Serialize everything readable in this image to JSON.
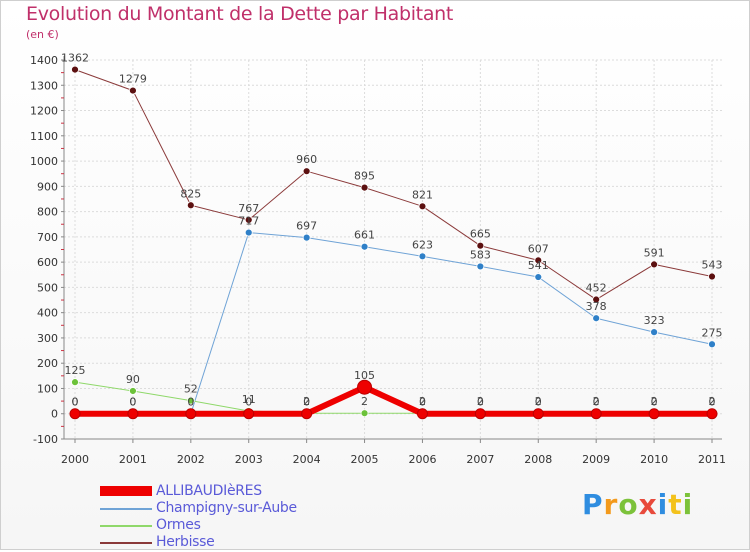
{
  "title": "Evolution du Montant de la Dette par Habitant",
  "subtitle": "(en €)",
  "logo": {
    "letters": [
      "P",
      "r",
      "o",
      "x",
      "i",
      "t",
      "i"
    ],
    "colors": [
      "#2f8de0",
      "#f39a1c",
      "#7cc23a",
      "#e84a3c",
      "#2f8de0",
      "#f3c21c",
      "#7cc23a"
    ]
  },
  "chart_data": {
    "type": "line",
    "title": "Evolution du Montant de la Dette par Habitant",
    "subtitle": "(en €)",
    "xlabel": "",
    "ylabel": "",
    "x": [
      "2000",
      "2001",
      "2002",
      "2003",
      "2004",
      "2005",
      "2006",
      "2007",
      "2008",
      "2009",
      "2010",
      "2011"
    ],
    "ylim": [
      -100,
      1400
    ],
    "yticks": [
      "-100",
      "0",
      "100",
      "200",
      "300",
      "400",
      "500",
      "600",
      "700",
      "800",
      "900",
      "1000",
      "1100",
      "1200",
      "1300",
      "1400"
    ],
    "ytick_values": [
      -100,
      0,
      100,
      200,
      300,
      400,
      500,
      600,
      700,
      800,
      900,
      1000,
      1100,
      1200,
      1300,
      1400
    ],
    "grid": true,
    "legend_position": "bottom-left",
    "series": [
      {
        "name": "Herbisse",
        "color": "#8b3a3a",
        "marker": "#5c1010",
        "width": 1,
        "values": [
          1362,
          1279,
          825,
          767,
          960,
          895,
          821,
          665,
          607,
          452,
          591,
          543
        ],
        "labels": [
          "1362",
          "1279",
          "825",
          "767",
          "960",
          "895",
          "821",
          "665",
          "607",
          "452",
          "591",
          "543"
        ]
      },
      {
        "name": "Champigny-sur-Aube",
        "color": "#6fa3d6",
        "marker": "#2f80c8",
        "width": 1,
        "values": [
          0,
          0,
          0,
          717,
          697,
          661,
          623,
          583,
          541,
          378,
          323,
          275
        ],
        "labels": [
          "0",
          "0",
          "0",
          "717",
          "697",
          "661",
          "623",
          "583",
          "541",
          "378",
          "323",
          "275"
        ]
      },
      {
        "name": "Ormes",
        "color": "#8fd86a",
        "marker": "#6cc23a",
        "width": 1,
        "values": [
          125,
          90,
          52,
          11,
          2,
          2,
          2,
          2,
          2,
          2,
          2,
          2
        ],
        "labels": [
          "125",
          "90",
          "52",
          "11",
          "2",
          "2",
          "2",
          "2",
          "2",
          "2",
          "2",
          "2"
        ]
      },
      {
        "name": "ALLIBAUDIèRES",
        "color": "#ee0000",
        "marker": "#ee0000",
        "width": 6,
        "values": [
          0,
          0,
          0,
          0,
          0,
          105,
          0,
          0,
          0,
          0,
          0,
          0
        ],
        "labels": [
          "0",
          "0",
          "0",
          "0",
          "0",
          "105",
          "0",
          "0",
          "0",
          "0",
          "0",
          "0"
        ]
      }
    ],
    "legend": [
      {
        "name": "ALLIBAUDIèRES",
        "color": "#ee0000",
        "thick": true
      },
      {
        "name": "Champigny-sur-Aube",
        "color": "#6fa3d6",
        "thick": false
      },
      {
        "name": "Ormes",
        "color": "#8fd86a",
        "thick": false
      },
      {
        "name": "Herbisse",
        "color": "#8b3a3a",
        "thick": false
      }
    ]
  }
}
